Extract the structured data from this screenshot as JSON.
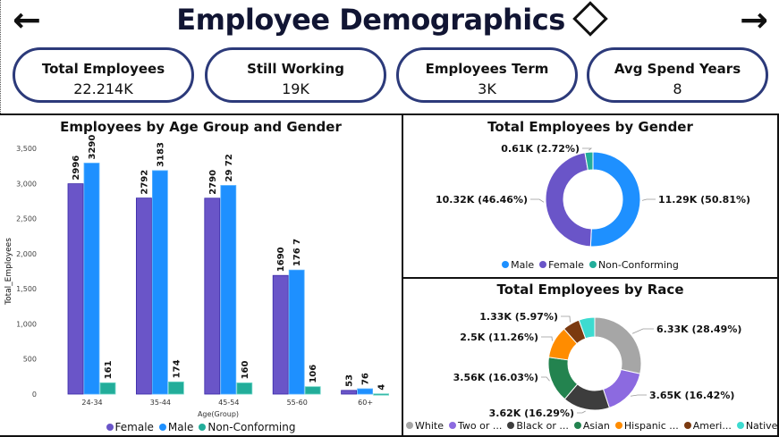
{
  "header": {
    "title": "Employee Demographics",
    "back_icon": "arrow-left-icon",
    "forward_icon": "arrow-right-icon",
    "title_icon": "diamond-icon"
  },
  "kpis": [
    {
      "label": "Total Employees",
      "value": "22.214K"
    },
    {
      "label": "Still Working",
      "value": "19K"
    },
    {
      "label": "Employees Term",
      "value": "3K"
    },
    {
      "label": "Avg Spend Years",
      "value": "8"
    }
  ],
  "colors": {
    "female": "#6a55c8",
    "male": "#1e90ff",
    "non_conforming": "#22ad9a",
    "border": "#2c3a7a"
  },
  "chart_data": [
    {
      "type": "bar",
      "title": "Employees by Age Group and Gender",
      "xlabel": "Age(Group)",
      "ylabel": "Total_Employees",
      "categories": [
        "24-34",
        "35-44",
        "45-54",
        "55-60",
        "60+"
      ],
      "series": [
        {
          "name": "Female",
          "color": "#6a55c8",
          "values": [
            2996,
            2792,
            2790,
            1690,
            53
          ],
          "labels": [
            "2996",
            "2792",
            "2790",
            "1690",
            "53"
          ]
        },
        {
          "name": "Male",
          "color": "#1e90ff",
          "values": [
            3290,
            3183,
            2972,
            1767,
            76
          ],
          "labels": [
            "3290",
            "3183",
            "29 72",
            "176 7",
            "76"
          ]
        },
        {
          "name": "Non-Conforming",
          "color": "#22ad9a",
          "values": [
            161,
            174,
            160,
            106,
            4
          ],
          "labels": [
            "161",
            "174",
            "160",
            "106",
            "4"
          ]
        }
      ],
      "yticks": [
        0,
        500,
        1000,
        1500,
        2000,
        2500,
        3000,
        3500
      ],
      "ytick_labels": [
        "0",
        "500",
        "1,000",
        "1,500",
        "2,000",
        "2,500",
        "3,000",
        "3,500"
      ],
      "ylim": [
        0,
        3500
      ],
      "legend": [
        "Female",
        "Male",
        "Non-Conforming"
      ],
      "legend_position": "bottom"
    },
    {
      "type": "pie",
      "donut": true,
      "title": "Total Employees by Gender",
      "slices": [
        {
          "name": "Male",
          "value": 11.29,
          "percent": 50.81,
          "label": "11.29K (50.81%)",
          "color": "#1e90ff"
        },
        {
          "name": "Female",
          "value": 10.32,
          "percent": 46.46,
          "label": "10.32K (46.46%)",
          "color": "#6a55c8"
        },
        {
          "name": "Non-Conforming",
          "value": 0.61,
          "percent": 2.72,
          "label": "0.61K (2.72%)",
          "color": "#22ad9a"
        }
      ],
      "legend": [
        "Male",
        "Female",
        "Non-Conforming"
      ],
      "legend_position": "bottom"
    },
    {
      "type": "pie",
      "donut": true,
      "title": "Total Employees by Race",
      "slices": [
        {
          "name": "White",
          "value": 6.33,
          "percent": 28.49,
          "label": "6.33K (28.49%)",
          "color": "#a6a6a6"
        },
        {
          "name": "Two or ...",
          "value": 3.65,
          "percent": 16.42,
          "label": "3.65K (16.42%)",
          "color": "#8c6ae0"
        },
        {
          "name": "Black or ...",
          "value": 3.62,
          "percent": 16.29,
          "label": "3.62K (16.29%)",
          "color": "#3d3d3d"
        },
        {
          "name": "Asian",
          "value": 3.56,
          "percent": 16.03,
          "label": "3.56K (16.03%)",
          "color": "#23834f"
        },
        {
          "name": "Hispanic ...",
          "value": 2.5,
          "percent": 11.26,
          "label": "2.5K (11.26%)",
          "color": "#ff8c00"
        },
        {
          "name": "Ameri...",
          "value": 1.33,
          "percent": 5.97,
          "label": "1.33K (5.97%)",
          "color": "#7b3a10"
        },
        {
          "name": "Native ...",
          "value": 1.23,
          "percent": 5.54,
          "label": "",
          "color": "#3ddbd0"
        }
      ],
      "legend": [
        "White",
        "Two or ...",
        "Black or ...",
        "Asian",
        "Hispanic ...",
        "Ameri...",
        "Native ..."
      ],
      "legend_position": "bottom"
    }
  ]
}
